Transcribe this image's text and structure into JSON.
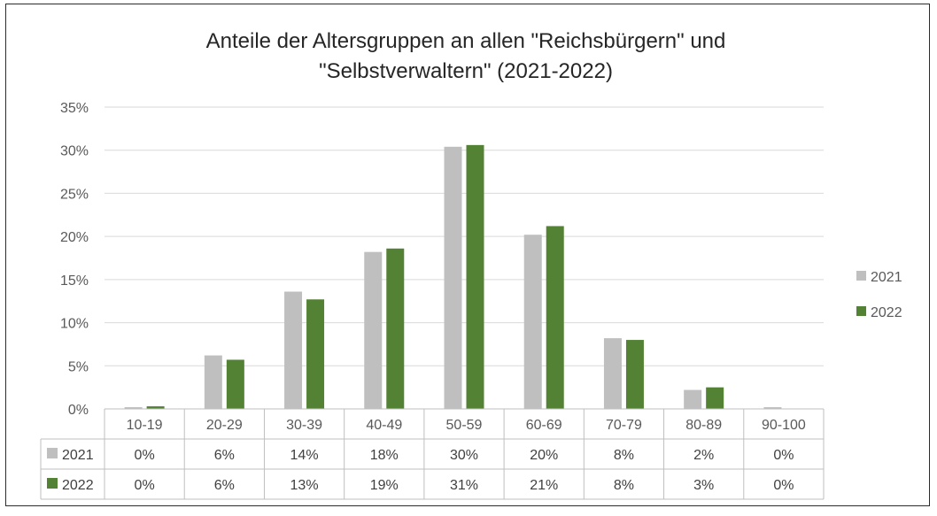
{
  "chart_data": {
    "type": "bar",
    "title": "Anteile der Altersgruppen an allen \"Reichsbürgern\" und \"Selbstverwaltern\" (2021-2022)",
    "title_lines": [
      "Anteile der Altersgruppen an allen \"Reichsbürgern\" und",
      "\"Selbstverwaltern\" (2021-2022)"
    ],
    "categories": [
      "10-19",
      "20-29",
      "30-39",
      "40-49",
      "50-59",
      "60-69",
      "70-79",
      "80-89",
      "90-100"
    ],
    "series": [
      {
        "name": "2021",
        "color": "#bfbfbf",
        "values": [
          0.2,
          6.2,
          13.6,
          18.2,
          30.4,
          20.2,
          8.2,
          2.2,
          0.2
        ],
        "labels": [
          "0%",
          "6%",
          "14%",
          "18%",
          "30%",
          "20%",
          "8%",
          "2%",
          "0%"
        ]
      },
      {
        "name": "2022",
        "color": "#548235",
        "values": [
          0.3,
          5.7,
          12.7,
          18.6,
          30.6,
          21.2,
          8.0,
          2.5,
          0.0
        ],
        "labels": [
          "0%",
          "6%",
          "13%",
          "19%",
          "31%",
          "21%",
          "8%",
          "3%",
          "0%"
        ]
      }
    ],
    "ylim": [
      0,
      35
    ],
    "yticks": [
      0,
      5,
      10,
      15,
      20,
      25,
      30,
      35
    ],
    "ytick_labels": [
      "0%",
      "5%",
      "10%",
      "15%",
      "20%",
      "25%",
      "30%",
      "35%"
    ],
    "xlabel": "",
    "ylabel": "",
    "grid": true,
    "legend": "right",
    "data_table": true
  }
}
